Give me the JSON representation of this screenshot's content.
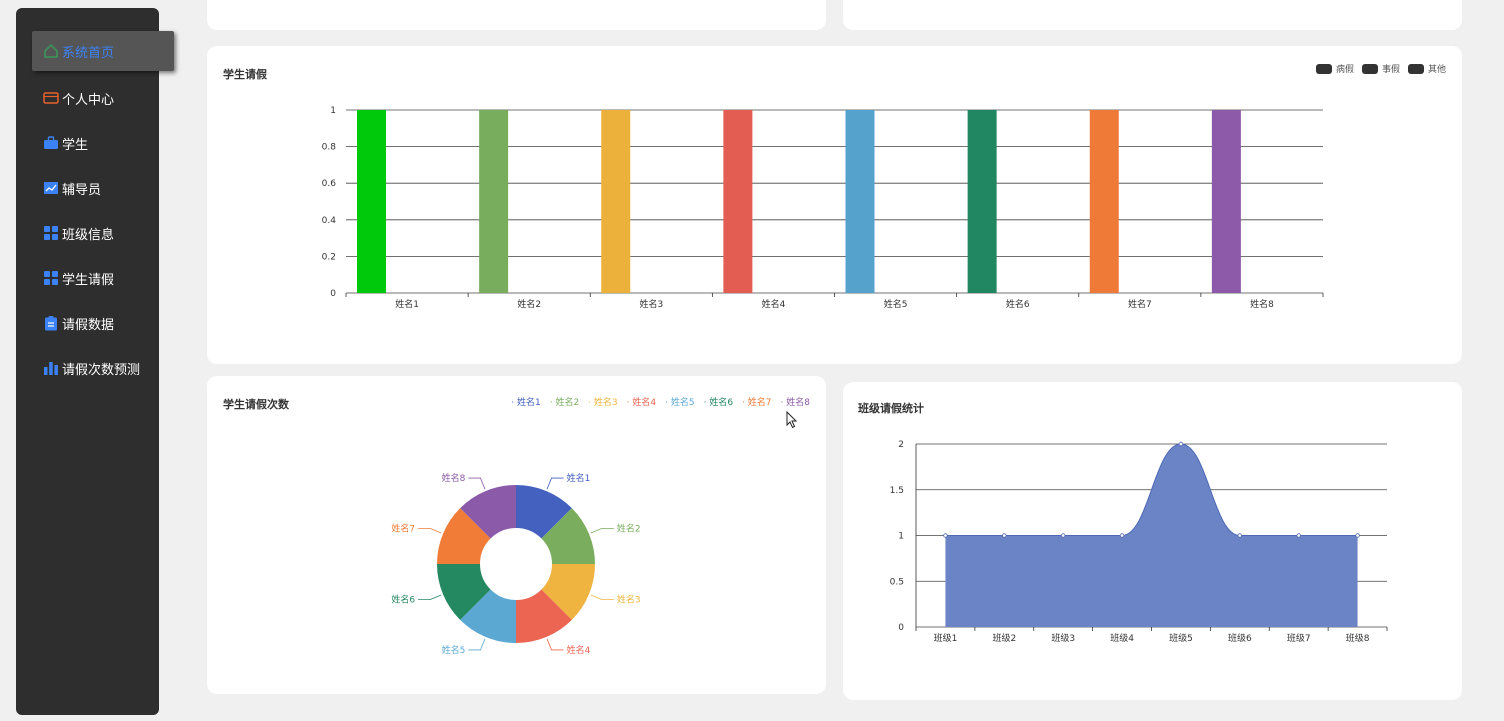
{
  "sidebar": {
    "items": [
      {
        "label": "系统首页",
        "icon": "home-icon",
        "active": true
      },
      {
        "label": "个人中心",
        "icon": "wallet-icon"
      },
      {
        "label": "学生",
        "icon": "briefcase-icon"
      },
      {
        "label": "辅导员",
        "icon": "chart-line-icon"
      },
      {
        "label": "班级信息",
        "icon": "grid-icon"
      },
      {
        "label": "学生请假",
        "icon": "grid-icon"
      },
      {
        "label": "请假数据",
        "icon": "clipboard-icon"
      },
      {
        "label": "请假次数预测",
        "icon": "bar-chart-icon"
      }
    ],
    "accent": "#3b82f6",
    "wallet_color": "#e8602c"
  },
  "cards": {
    "bar_title": "学生请假",
    "pie_title": "学生请假次数",
    "area_title": "班级请假统计"
  },
  "bar_legend": [
    "病假",
    "事假",
    "其他"
  ],
  "chart_data": [
    {
      "type": "bar",
      "title": "学生请假",
      "categories": [
        "姓名1",
        "姓名2",
        "姓名3",
        "姓名4",
        "姓名5",
        "姓名6",
        "姓名7",
        "姓名8"
      ],
      "series": [
        {
          "name": "病假",
          "values": [
            1,
            1,
            1,
            1,
            1,
            1,
            1,
            1
          ]
        },
        {
          "name": "事假",
          "values": [
            0,
            0,
            0,
            0,
            0,
            0,
            0,
            0
          ]
        },
        {
          "name": "其他",
          "values": [
            0,
            0,
            0,
            0,
            0,
            0,
            0,
            0
          ]
        }
      ],
      "bar_colors": [
        "#00c80a",
        "#78ad5e",
        "#ebb13a",
        "#e35d52",
        "#55a3cd",
        "#218762",
        "#ef7a37",
        "#8c5aa8"
      ],
      "ylim": [
        0,
        1
      ],
      "yticks": [
        "0",
        "0.2",
        "0.4",
        "0.6",
        "0.8",
        "1"
      ],
      "legend": "top-right",
      "grid": true
    },
    {
      "type": "pie",
      "title": "学生请假次数",
      "labels": [
        "姓名1",
        "姓名2",
        "姓名3",
        "姓名4",
        "姓名5",
        "姓名6",
        "姓名7",
        "姓名8"
      ],
      "values": [
        1,
        1,
        1,
        1,
        1,
        1,
        1,
        1
      ],
      "colors": [
        "#4461c0",
        "#7aae5e",
        "#eeb43f",
        "#ec6552",
        "#5ba9d3",
        "#248861",
        "#f17c38",
        "#8b5ba9"
      ],
      "donut": true,
      "legend": "top-right"
    },
    {
      "type": "area",
      "title": "班级请假统计",
      "categories": [
        "班级1",
        "班级2",
        "班级3",
        "班级4",
        "班级5",
        "班级6",
        "班级7",
        "班级8"
      ],
      "values": [
        1,
        1,
        1,
        1,
        2,
        1,
        1,
        1
      ],
      "ylim": [
        0,
        2
      ],
      "yticks": [
        "0",
        "0.5",
        "1",
        "1.5",
        "2"
      ],
      "fill": "#6a84c6",
      "line": "#4e68b5",
      "smooth": true,
      "grid": true
    }
  ]
}
